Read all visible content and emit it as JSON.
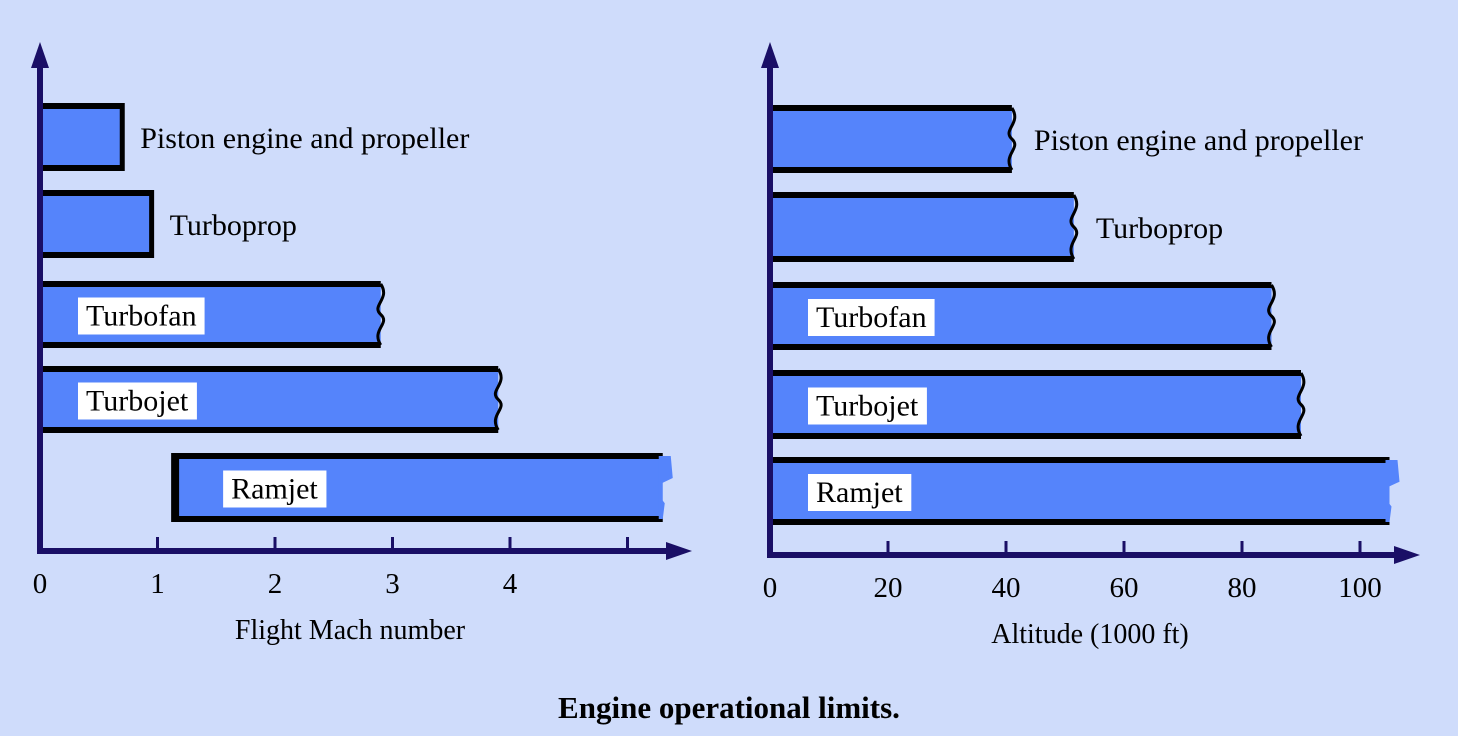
{
  "caption": "Engine operational limits.",
  "colors": {
    "background": "#cfdcfb",
    "bar_fill": "#5584fb",
    "bar_border": "#000000",
    "axis": "#1a0f66",
    "label_box": "#ffffff"
  },
  "chart_data": [
    {
      "type": "bar",
      "orientation": "horizontal",
      "xlabel": "Flight Mach number",
      "ylabel": "",
      "xlim": [
        0,
        5.4
      ],
      "xticks": [
        0,
        1,
        2,
        3,
        4,
        5
      ],
      "xtick_labels": [
        "0",
        "1",
        "2",
        "3",
        "4",
        ""
      ],
      "grid": false,
      "categories": [
        "Piston engine and propeller",
        "Turboprop",
        "Turbofan",
        "Turbojet",
        "Ramjet"
      ],
      "ranges": [
        {
          "category": "Piston engine and propeller",
          "start": 0,
          "end": 0.7,
          "end_style": "straight",
          "boxed_label": false
        },
        {
          "category": "Turboprop",
          "start": 0,
          "end": 0.95,
          "end_style": "straight",
          "boxed_label": false
        },
        {
          "category": "Turbofan",
          "start": 0,
          "end": 2.9,
          "end_style": "wavy",
          "boxed_label": true
        },
        {
          "category": "Turbojet",
          "start": 0,
          "end": 3.9,
          "end_style": "wavy",
          "boxed_label": true
        },
        {
          "category": "Ramjet",
          "start": 1.15,
          "end": 5.3,
          "end_style": "open",
          "boxed_label": true
        }
      ]
    },
    {
      "type": "bar",
      "orientation": "horizontal",
      "xlabel": "Altitude (1000 ft)",
      "ylabel": "",
      "xlim": [
        0,
        110
      ],
      "xticks": [
        0,
        20,
        40,
        60,
        80,
        100
      ],
      "xtick_labels": [
        "0",
        "20",
        "40",
        "60",
        "80",
        "100"
      ],
      "grid": false,
      "categories": [
        "Piston engine and propeller",
        "Turboprop",
        "Turbofan",
        "Turbojet",
        "Ramjet"
      ],
      "ranges": [
        {
          "category": "Piston engine and propeller",
          "start": 0,
          "end": 41,
          "end_style": "wavy",
          "boxed_label": false
        },
        {
          "category": "Turboprop",
          "start": 0,
          "end": 51.5,
          "end_style": "wavy",
          "boxed_label": false
        },
        {
          "category": "Turbofan",
          "start": 0,
          "end": 85,
          "end_style": "wavy",
          "boxed_label": true
        },
        {
          "category": "Turbojet",
          "start": 0,
          "end": 90,
          "end_style": "wavy",
          "boxed_label": true
        },
        {
          "category": "Ramjet",
          "start": 0,
          "end": 105,
          "end_style": "open",
          "boxed_label": true
        }
      ]
    }
  ]
}
